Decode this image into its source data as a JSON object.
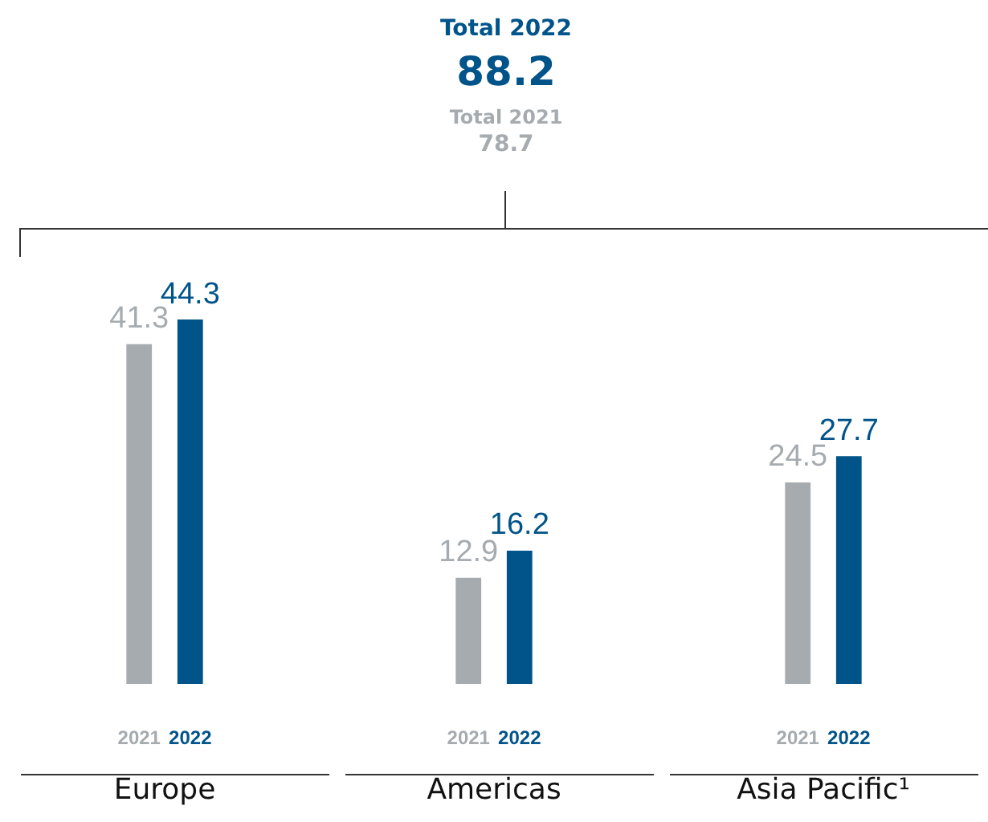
{
  "chart_data": {
    "type": "bar",
    "categories": [
      "Europe",
      "Americas",
      "Asia Pacific¹"
    ],
    "series": [
      {
        "name": "2021",
        "color": "#a6abb0",
        "values": [
          41.3,
          12.9,
          24.5
        ]
      },
      {
        "name": "2022",
        "color": "#00548a",
        "values": [
          44.3,
          16.2,
          27.7
        ]
      }
    ],
    "data_labels": true,
    "legend": false,
    "grid": false,
    "tick_labels": "x",
    "annotations": [
      "Total 2022",
      "88.2",
      "Total 2021",
      "78.7"
    ]
  }
}
